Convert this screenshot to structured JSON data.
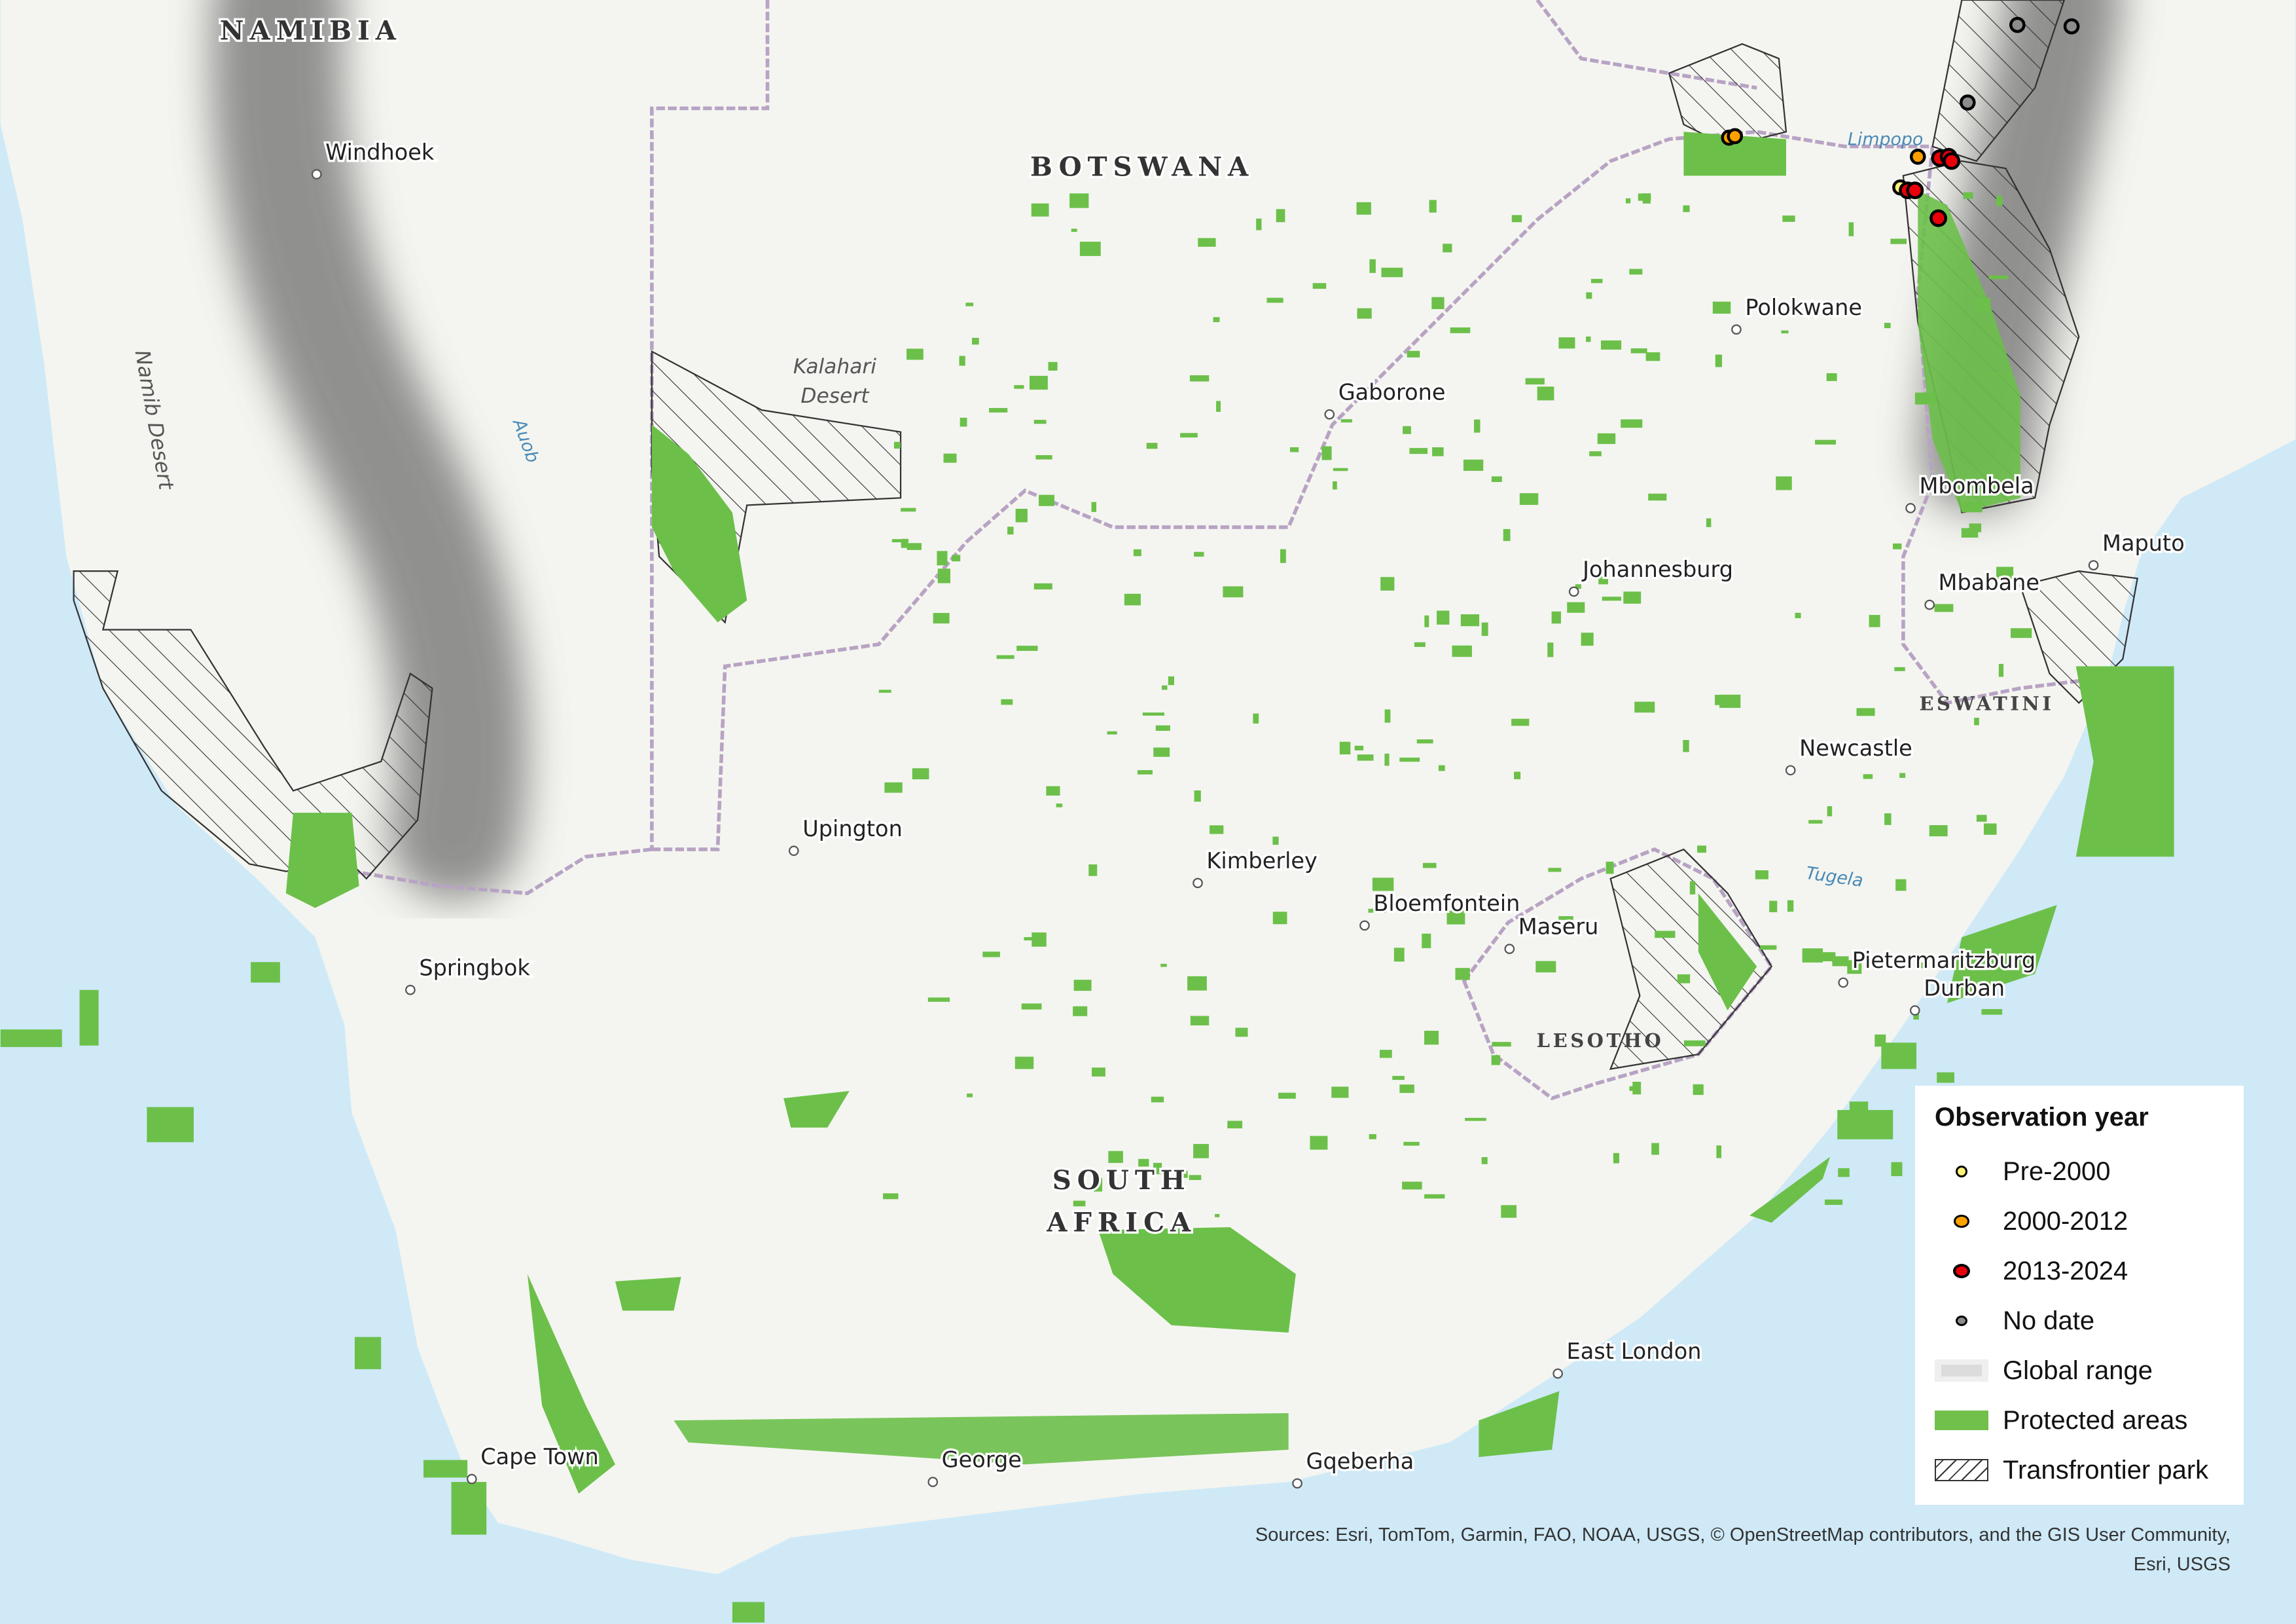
{
  "map": {
    "countries": [
      "NAMIBIA",
      "BOTSWANA",
      "SOUTH",
      "AFRICA",
      "LESOTHO",
      "ESWATINI"
    ],
    "cities": [
      "Windhoek",
      "Gaborone",
      "Polokwane",
      "Mbombela",
      "Maputo",
      "Mbabane",
      "Johannesburg",
      "Newcastle",
      "Upington",
      "Kimberley",
      "Bloemfontein",
      "Maseru",
      "Pietermaritzburg",
      "Durban",
      "Springbok",
      "East London",
      "Cape Town",
      "George",
      "Gqeberha"
    ],
    "features": [
      "Kalahari",
      "Desert",
      "Namib Desert"
    ],
    "rivers": [
      "Auob",
      "Limpopo",
      "Tugela"
    ],
    "colors": {
      "land": "#f4f5f0",
      "ocean": "#cfe9f7",
      "protected": "#6cc04a",
      "range": "#555555",
      "border": "#b8a3c4"
    }
  },
  "legend": {
    "title": "Observation year",
    "items": [
      {
        "label": "Pre-2000",
        "symbol": "point",
        "color": "#fff27a"
      },
      {
        "label": "2000-2012",
        "symbol": "point",
        "color": "#ffa000"
      },
      {
        "label": "2013-2024",
        "symbol": "point",
        "color": "#e8000a"
      },
      {
        "label": "No date",
        "symbol": "point",
        "color": "#8c8c8c"
      },
      {
        "label": "Global range",
        "symbol": "range",
        "color": "#dcdcdc"
      },
      {
        "label": "Protected areas",
        "symbol": "fill",
        "color": "#72c04c"
      },
      {
        "label": "Transfrontier park",
        "symbol": "hatch",
        "color": "#333333"
      }
    ]
  },
  "attribution": {
    "line1": "Sources: Esri, TomTom, Garmin, FAO, NOAA, USGS, © OpenStreetMap contributors, and the GIS User Community,",
    "line2": "Esri, USGS"
  }
}
